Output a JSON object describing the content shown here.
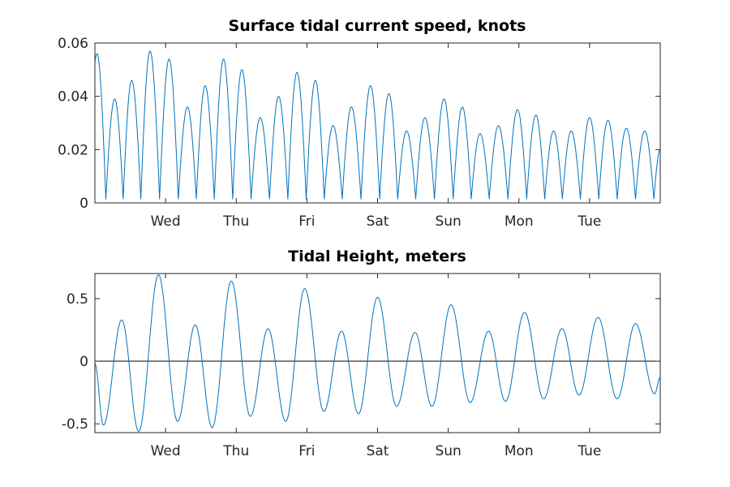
{
  "chart_data": [
    {
      "type": "line",
      "title": "Surface tidal current speed, knots",
      "xlabel": "",
      "ylabel": "",
      "x_tick_labels": [
        "Wed",
        "Thu",
        "Fri",
        "Sat",
        "Sun",
        "Mon",
        "Tue"
      ],
      "xlim_days": [
        0,
        8
      ],
      "x_tick_days": [
        1,
        2,
        3,
        4,
        5,
        6,
        7
      ],
      "ylim": [
        0,
        0.06
      ],
      "y_ticks": [
        0,
        0.02,
        0.04,
        0.06
      ],
      "y_tick_labels": [
        "0",
        "0.02",
        "0.04",
        "0.06"
      ],
      "grid": false,
      "color": "#0072bd",
      "peaks": [
        {
          "x": 0.03,
          "y": 0.056
        },
        {
          "x": 0.28,
          "y": 0.039
        },
        {
          "x": 0.52,
          "y": 0.046
        },
        {
          "x": 0.78,
          "y": 0.057
        },
        {
          "x": 1.05,
          "y": 0.054
        },
        {
          "x": 1.31,
          "y": 0.036
        },
        {
          "x": 1.56,
          "y": 0.044
        },
        {
          "x": 1.82,
          "y": 0.054
        },
        {
          "x": 2.08,
          "y": 0.05
        },
        {
          "x": 2.34,
          "y": 0.032
        },
        {
          "x": 2.6,
          "y": 0.04
        },
        {
          "x": 2.86,
          "y": 0.049
        },
        {
          "x": 3.12,
          "y": 0.046
        },
        {
          "x": 3.37,
          "y": 0.029
        },
        {
          "x": 3.63,
          "y": 0.036
        },
        {
          "x": 3.9,
          "y": 0.044
        },
        {
          "x": 4.16,
          "y": 0.041
        },
        {
          "x": 4.41,
          "y": 0.027
        },
        {
          "x": 4.67,
          "y": 0.032
        },
        {
          "x": 4.94,
          "y": 0.039
        },
        {
          "x": 5.2,
          "y": 0.036
        },
        {
          "x": 5.45,
          "y": 0.026
        },
        {
          "x": 5.71,
          "y": 0.029
        },
        {
          "x": 5.98,
          "y": 0.035
        },
        {
          "x": 6.24,
          "y": 0.033
        },
        {
          "x": 6.49,
          "y": 0.027
        },
        {
          "x": 6.74,
          "y": 0.027
        },
        {
          "x": 7.0,
          "y": 0.032
        },
        {
          "x": 7.26,
          "y": 0.031
        },
        {
          "x": 7.52,
          "y": 0.028
        },
        {
          "x": 7.78,
          "y": 0.027
        }
      ],
      "end_value": 0.02
    },
    {
      "type": "line",
      "title": "Tidal Height, meters",
      "xlabel": "",
      "ylabel": "",
      "x_tick_labels": [
        "Wed",
        "Thu",
        "Fri",
        "Sat",
        "Sun",
        "Mon",
        "Tue"
      ],
      "xlim_days": [
        0,
        8
      ],
      "x_tick_days": [
        1,
        2,
        3,
        4,
        5,
        6,
        7
      ],
      "ylim": [
        -0.57,
        0.7
      ],
      "y_ticks": [
        -0.5,
        0,
        0.5
      ],
      "y_tick_labels": [
        "-0.5",
        "0",
        "0.5"
      ],
      "grid": false,
      "zero_line": true,
      "color": "#0072bd",
      "extrema": [
        {
          "x": 0.0,
          "y": -0.02
        },
        {
          "x": 0.12,
          "y": -0.51
        },
        {
          "x": 0.38,
          "y": 0.33
        },
        {
          "x": 0.62,
          "y": -0.56
        },
        {
          "x": 0.9,
          "y": 0.69
        },
        {
          "x": 1.17,
          "y": -0.48
        },
        {
          "x": 1.42,
          "y": 0.29
        },
        {
          "x": 1.66,
          "y": -0.53
        },
        {
          "x": 1.93,
          "y": 0.64
        },
        {
          "x": 2.2,
          "y": -0.44
        },
        {
          "x": 2.45,
          "y": 0.26
        },
        {
          "x": 2.7,
          "y": -0.48
        },
        {
          "x": 2.97,
          "y": 0.58
        },
        {
          "x": 3.24,
          "y": -0.4
        },
        {
          "x": 3.49,
          "y": 0.24
        },
        {
          "x": 3.73,
          "y": -0.42
        },
        {
          "x": 4.0,
          "y": 0.51
        },
        {
          "x": 4.27,
          "y": -0.36
        },
        {
          "x": 4.53,
          "y": 0.23
        },
        {
          "x": 4.77,
          "y": -0.36
        },
        {
          "x": 5.04,
          "y": 0.45
        },
        {
          "x": 5.31,
          "y": -0.33
        },
        {
          "x": 5.57,
          "y": 0.24
        },
        {
          "x": 5.81,
          "y": -0.32
        },
        {
          "x": 6.08,
          "y": 0.39
        },
        {
          "x": 6.35,
          "y": -0.3
        },
        {
          "x": 6.61,
          "y": 0.26
        },
        {
          "x": 6.85,
          "y": -0.27
        },
        {
          "x": 7.12,
          "y": 0.35
        },
        {
          "x": 7.39,
          "y": -0.3
        },
        {
          "x": 7.65,
          "y": 0.3
        },
        {
          "x": 7.92,
          "y": -0.26
        },
        {
          "x": 8.0,
          "y": -0.13
        }
      ]
    }
  ]
}
